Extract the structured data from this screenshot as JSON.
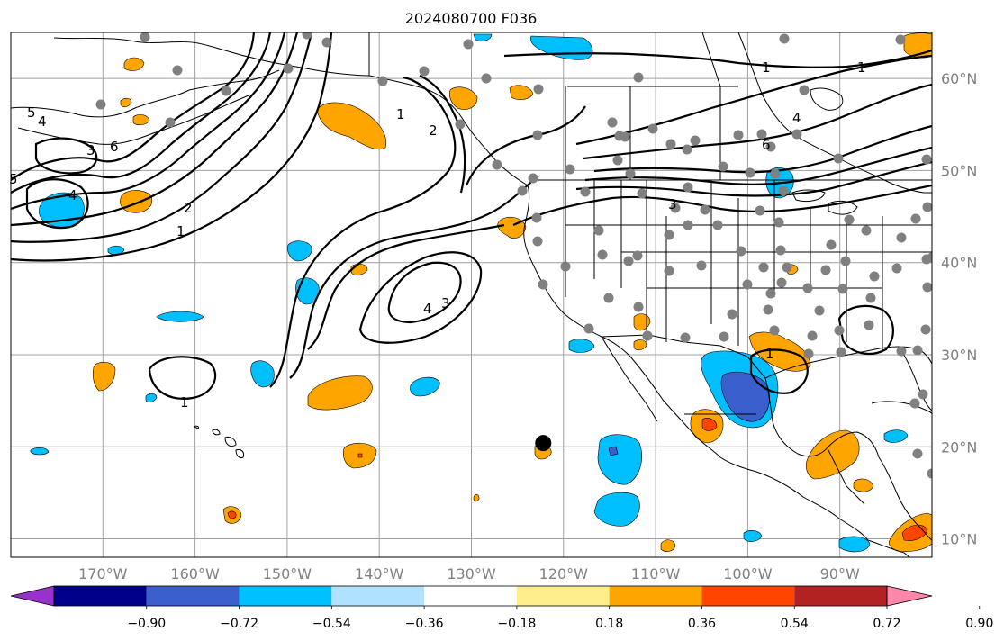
{
  "title": "2024080700 F036",
  "map": {
    "lon_range": [
      -180,
      -80
    ],
    "lat_range": [
      8,
      65
    ],
    "grid": true,
    "lat_ticks": [
      {
        "value": 10,
        "label": "10°N"
      },
      {
        "value": 20,
        "label": "20°N"
      },
      {
        "value": 30,
        "label": "30°N"
      },
      {
        "value": 40,
        "label": "40°N"
      },
      {
        "value": 50,
        "label": "50°N"
      },
      {
        "value": 60,
        "label": "60°N"
      }
    ],
    "lon_ticks": [
      {
        "value": -170,
        "label": "170°W"
      },
      {
        "value": -160,
        "label": "160°W"
      },
      {
        "value": -150,
        "label": "150°W"
      },
      {
        "value": -140,
        "label": "140°W"
      },
      {
        "value": -130,
        "label": "130°W"
      },
      {
        "value": -120,
        "label": "120°W"
      },
      {
        "value": -110,
        "label": "110°W"
      },
      {
        "value": -100,
        "label": "100°W"
      },
      {
        "value": -90,
        "label": "90°W"
      }
    ],
    "marker": {
      "lon": -122.2,
      "lat": 20.4,
      "color": "#000000"
    },
    "station_color": "#808080",
    "contour_labels": [
      "1",
      "2",
      "3",
      "4",
      "5",
      "6"
    ]
  },
  "colorbar": {
    "colors": [
      "#9932CC",
      "#00008B",
      "#3A5FCD",
      "#00BFFF",
      "#B0E2FF",
      "#FFFFFF",
      "#FFEC8B",
      "#FFA500",
      "#FF4500",
      "#B22222",
      "#FF88AA"
    ],
    "labels": [
      "−0.90",
      "−0.72",
      "−0.54",
      "−0.36",
      "−0.18",
      "0.18",
      "0.36",
      "0.54",
      "0.72",
      "0.90"
    ]
  }
}
